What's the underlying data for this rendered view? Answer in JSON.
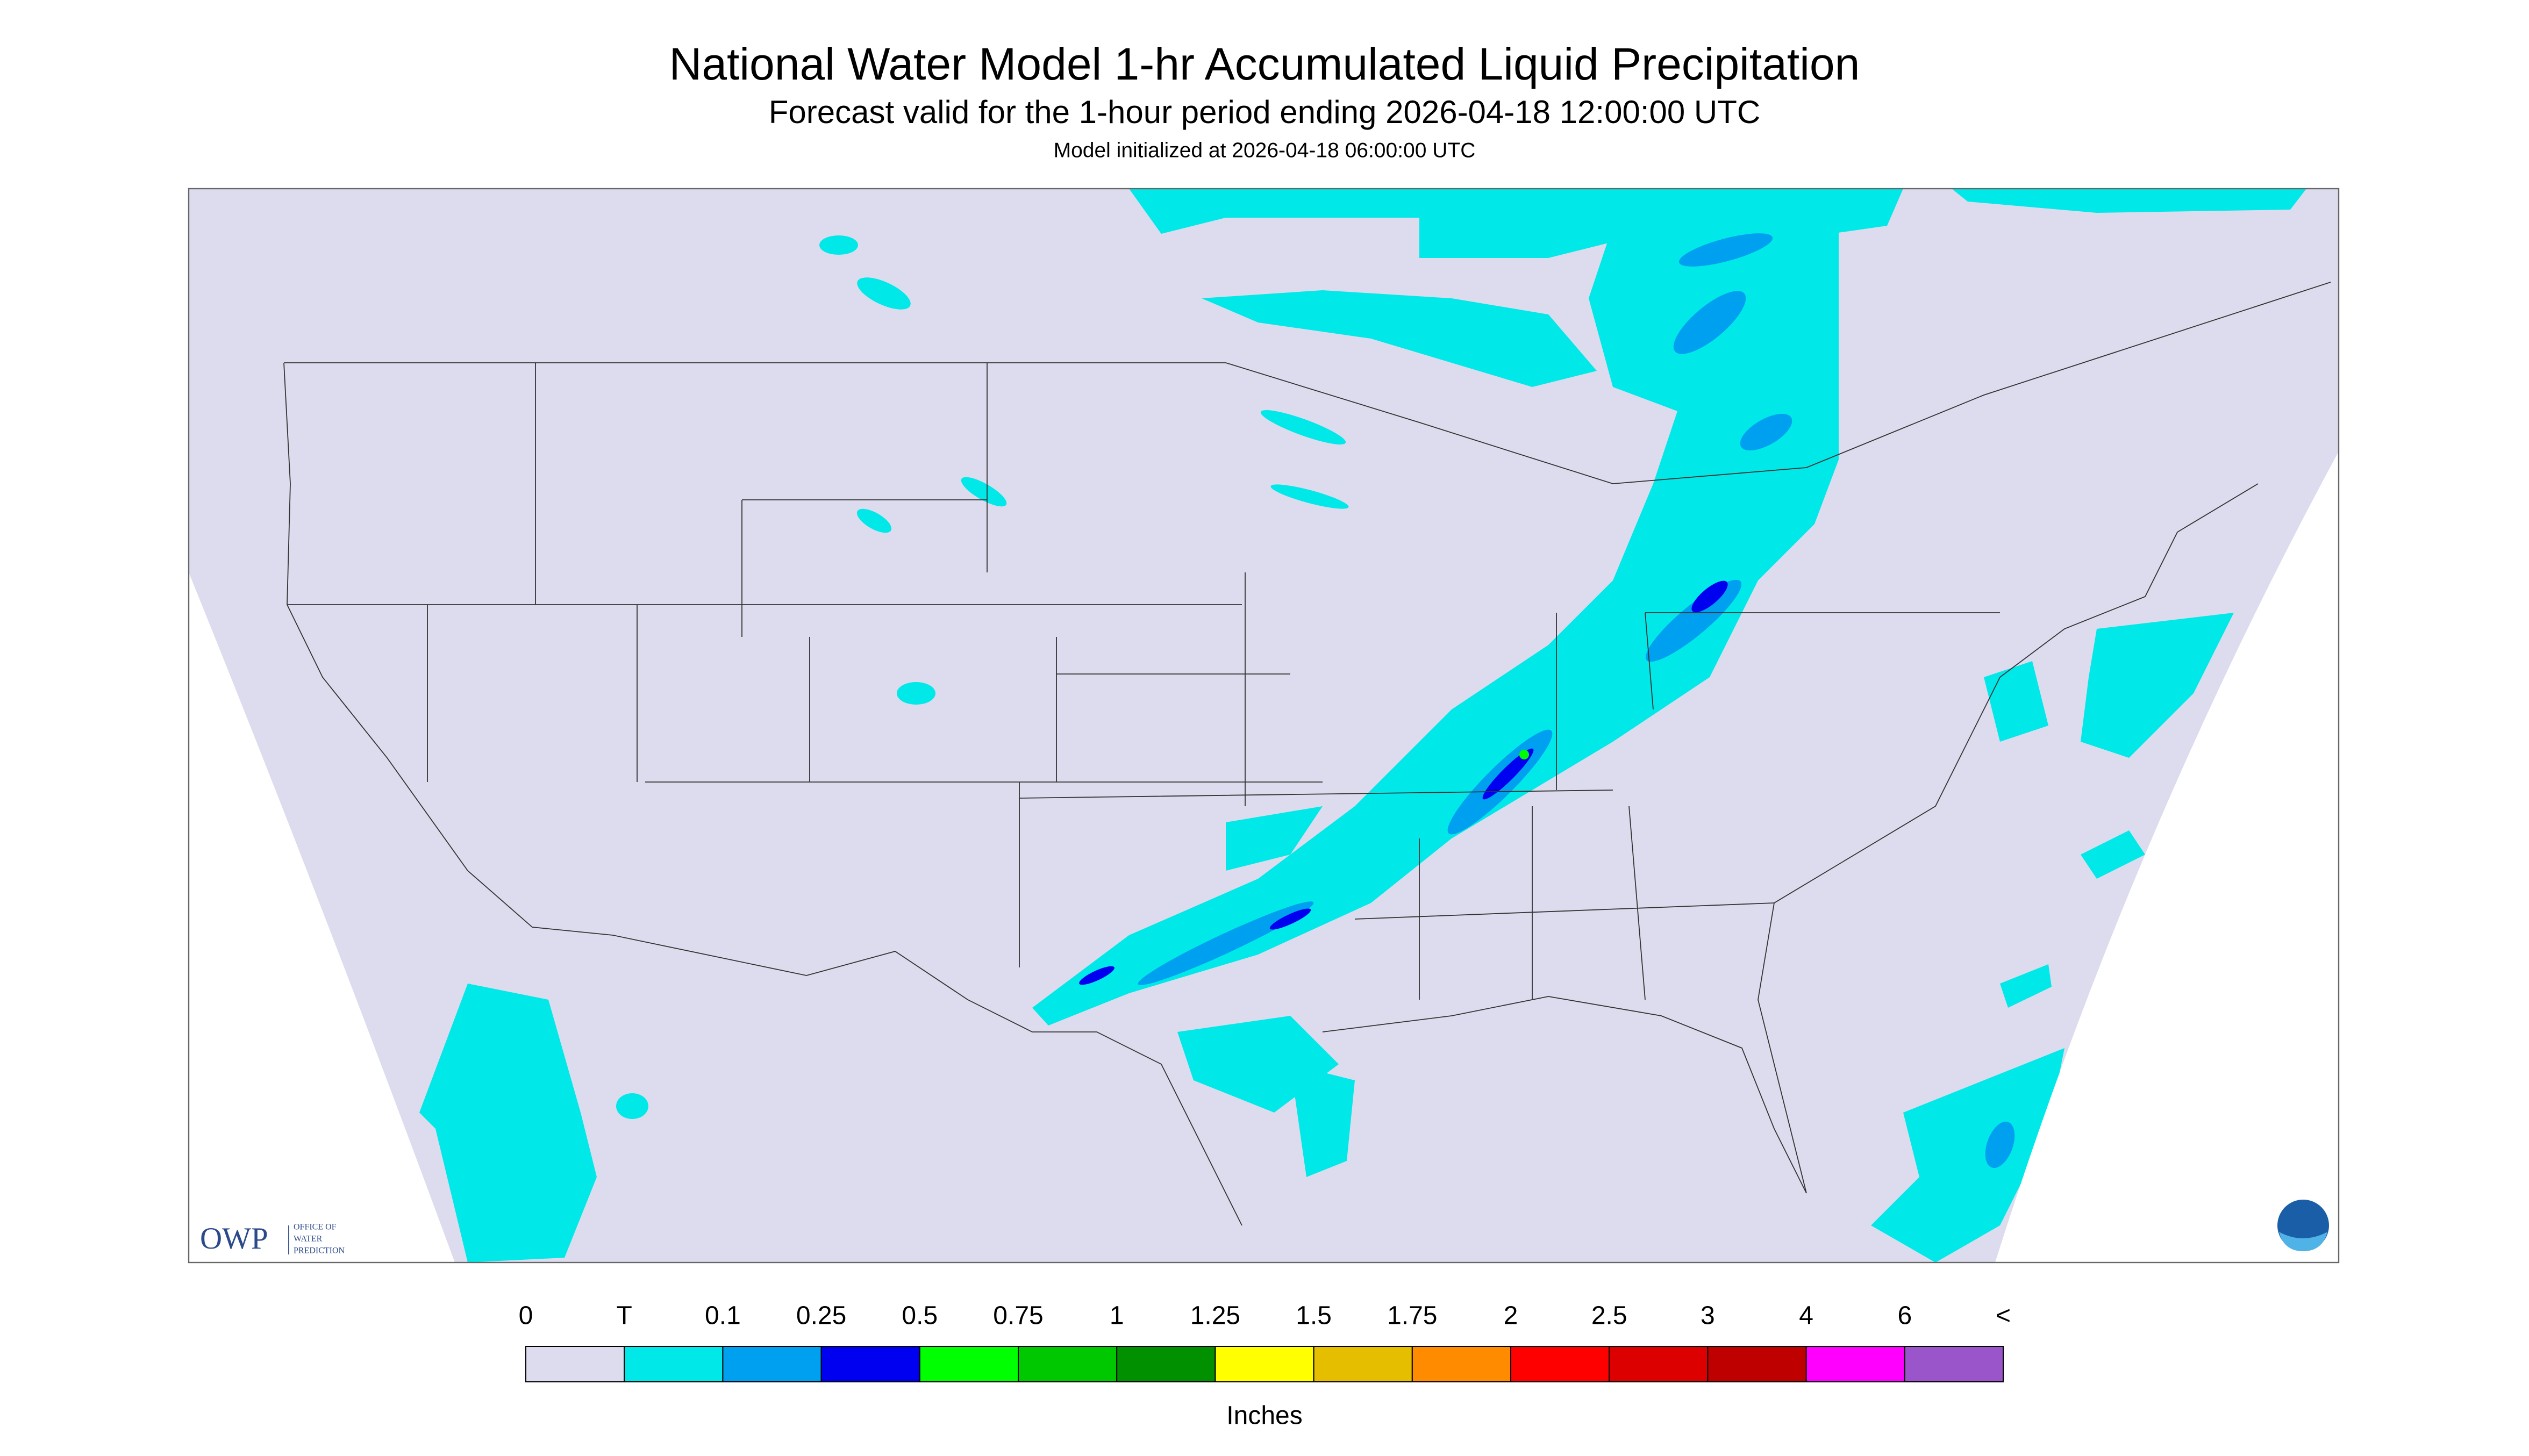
{
  "header": {
    "title": "National Water Model 1-hr Accumulated Liquid Precipitation",
    "subtitle": "Forecast valid for the 1-hour period ending 2026-04-18 12:00:00 UTC",
    "init": "Model initialized at 2026-04-18 06:00:00 UTC"
  },
  "logo": {
    "abbr": "OWP",
    "line1": "OFFICE OF",
    "line2": "WATER",
    "line3": "PREDICTION"
  },
  "legend": {
    "labels": [
      "0",
      "T",
      "0.1",
      "0.25",
      "0.5",
      "0.75",
      "1",
      "1.25",
      "1.5",
      "1.75",
      "2",
      "2.5",
      "3",
      "4",
      "6",
      "<"
    ],
    "colors": [
      "#dcdcee",
      "#00e8e8",
      "#00a0f0",
      "#0000f0",
      "#00ff00",
      "#00c800",
      "#009000",
      "#ffff00",
      "#e6be00",
      "#ff8c00",
      "#ff0000",
      "#dc0000",
      "#be0000",
      "#ff00ff",
      "#9955c9"
    ],
    "units": "Inches"
  }
}
